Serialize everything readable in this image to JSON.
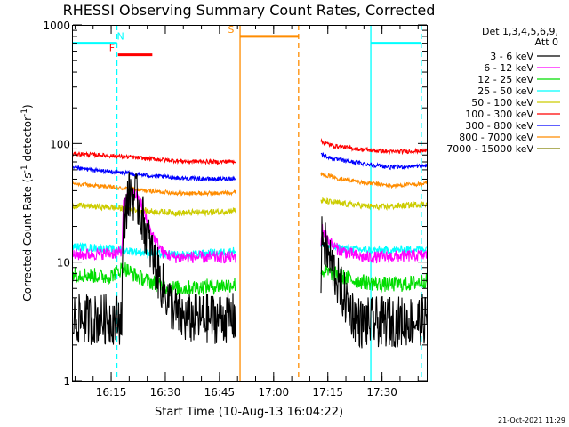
{
  "chart_data": {
    "type": "line",
    "title": "RHESSI Observing Summary Count Rates, Corrected",
    "xlabel": "Start Time (10-Aug-13 16:04:22)",
    "ylabel_main": "Corrected Count Rate (s",
    "ylabel_sup1": "-1",
    "ylabel_mid": " detector",
    "ylabel_sup2": "-1",
    "ylabel_end": ")",
    "yscale": "log",
    "ylim": [
      1,
      1000
    ],
    "xlim_minutes": [
      0,
      98
    ],
    "x_ticks": [
      {
        "label": "16:15",
        "minute": 10.6
      },
      {
        "label": "16:30",
        "minute": 25.6
      },
      {
        "label": "16:45",
        "minute": 40.6
      },
      {
        "label": "17:00",
        "minute": 55.6
      },
      {
        "label": "17:15",
        "minute": 70.6
      },
      {
        "label": "17:30",
        "minute": 85.6
      }
    ],
    "y_ticks": [
      {
        "label": "1",
        "value": 1
      },
      {
        "label": "10",
        "value": 10
      },
      {
        "label": "100",
        "value": 100
      },
      {
        "label": "1000",
        "value": 1000
      }
    ],
    "legend": {
      "placement": "right",
      "header_line1": "Det 1,3,4,5,6,9,",
      "header_line2": "Att 0",
      "entries": [
        {
          "label": "3 - 6 keV",
          "color": "#000000"
        },
        {
          "label": "6 - 12 keV",
          "color": "#ff00ff"
        },
        {
          "label": "12 - 25 keV",
          "color": "#00dd00"
        },
        {
          "label": "25 - 50 keV",
          "color": "#00ffff"
        },
        {
          "label": "50 - 100 keV",
          "color": "#cccc00"
        },
        {
          "label": "100 - 300 keV",
          "color": "#ff0000"
        },
        {
          "label": "300 - 800 keV",
          "color": "#0000ff"
        },
        {
          "label": "800 - 7000 keV",
          "color": "#ff8c00"
        },
        {
          "label": "7000 - 15000 keV",
          "color": "#808000"
        }
      ]
    },
    "segments": [
      {
        "name": "before-gap",
        "x_start": 0,
        "x_end": 45.2
      },
      {
        "name": "after-gap",
        "x_start": 68.5,
        "x_end": 98
      }
    ],
    "series": [
      {
        "name": "3 - 6 keV",
        "color": "#000000",
        "noise": 0.5,
        "points": [
          [
            0,
            3.3
          ],
          [
            13.5,
            3.3
          ],
          [
            14,
            20
          ],
          [
            15,
            33
          ],
          [
            16,
            38
          ],
          [
            17.5,
            35
          ],
          [
            19,
            25
          ],
          [
            21,
            15
          ],
          [
            23,
            9
          ],
          [
            25,
            6
          ],
          [
            27,
            4.5
          ],
          [
            29,
            3.6
          ],
          [
            31,
            3.3
          ],
          [
            45.2,
            3.4
          ],
          [
            68.5,
            3.5
          ],
          [
            69,
            18
          ],
          [
            70,
            13
          ],
          [
            72,
            9
          ],
          [
            74,
            6
          ],
          [
            76,
            4.5
          ],
          [
            78,
            3.5
          ],
          [
            80,
            3.0
          ],
          [
            82,
            3.1
          ],
          [
            95,
            3.2
          ],
          [
            98,
            3.3
          ]
        ]
      },
      {
        "name": "6 - 12 keV",
        "color": "#ff00ff",
        "noise": 0.12,
        "points": [
          [
            0,
            11.5
          ],
          [
            13.5,
            12
          ],
          [
            14,
            30
          ],
          [
            16,
            38
          ],
          [
            17.5,
            37
          ],
          [
            19,
            30
          ],
          [
            21,
            20
          ],
          [
            23,
            15
          ],
          [
            25,
            12
          ],
          [
            28,
            11
          ],
          [
            45.2,
            11
          ],
          [
            68.5,
            11.5
          ],
          [
            69,
            19
          ],
          [
            71,
            15
          ],
          [
            73,
            13
          ],
          [
            76,
            12
          ],
          [
            80,
            11
          ],
          [
            85,
            11
          ],
          [
            98,
            11.5
          ]
        ]
      },
      {
        "name": "12 - 25 keV",
        "color": "#00dd00",
        "noise": 0.15,
        "points": [
          [
            0,
            8
          ],
          [
            10,
            7.5
          ],
          [
            14,
            9
          ],
          [
            18,
            7.5
          ],
          [
            25,
            6.2
          ],
          [
            30,
            6
          ],
          [
            45.2,
            6.5
          ],
          [
            68.5,
            8.5
          ],
          [
            72,
            8
          ],
          [
            78,
            7
          ],
          [
            85,
            6.5
          ],
          [
            92,
            6.5
          ],
          [
            98,
            7
          ]
        ]
      },
      {
        "name": "25 - 50 keV",
        "color": "#00ffff",
        "noise": 0.08,
        "points": [
          [
            0,
            13.5
          ],
          [
            10,
            13
          ],
          [
            20,
            12
          ],
          [
            30,
            11.5
          ],
          [
            40,
            12
          ],
          [
            45.2,
            12.5
          ],
          [
            68.5,
            14
          ],
          [
            75,
            13
          ],
          [
            85,
            12.5
          ],
          [
            98,
            13
          ]
        ]
      },
      {
        "name": "50 - 100 keV",
        "color": "#cccc00",
        "noise": 0.06,
        "points": [
          [
            0,
            30
          ],
          [
            10,
            29
          ],
          [
            20,
            27
          ],
          [
            30,
            26
          ],
          [
            40,
            26.5
          ],
          [
            45.2,
            27.5
          ],
          [
            68.5,
            33
          ],
          [
            75,
            31
          ],
          [
            85,
            29
          ],
          [
            98,
            31
          ]
        ]
      },
      {
        "name": "100 - 300 keV",
        "color": "#ff0000",
        "noise": 0.04,
        "points": [
          [
            0,
            82
          ],
          [
            10,
            79
          ],
          [
            20,
            75
          ],
          [
            30,
            71
          ],
          [
            40,
            70
          ],
          [
            45.2,
            71
          ],
          [
            68.5,
            104
          ],
          [
            72,
            96
          ],
          [
            80,
            89
          ],
          [
            88,
            85
          ],
          [
            98,
            87
          ]
        ]
      },
      {
        "name": "300 - 800 keV",
        "color": "#0000ff",
        "noise": 0.04,
        "points": [
          [
            0,
            62
          ],
          [
            10,
            58
          ],
          [
            20,
            54
          ],
          [
            30,
            51
          ],
          [
            40,
            50
          ],
          [
            45.2,
            51
          ],
          [
            68.5,
            82
          ],
          [
            72,
            74
          ],
          [
            80,
            68
          ],
          [
            88,
            63
          ],
          [
            98,
            65
          ]
        ]
      },
      {
        "name": "800 - 7000 keV",
        "color": "#ff8c00",
        "noise": 0.04,
        "points": [
          [
            0,
            46
          ],
          [
            10,
            43
          ],
          [
            20,
            40
          ],
          [
            30,
            38
          ],
          [
            40,
            38
          ],
          [
            45.2,
            39
          ],
          [
            68.5,
            56
          ],
          [
            72,
            52
          ],
          [
            80,
            47
          ],
          [
            88,
            44
          ],
          [
            98,
            46
          ]
        ]
      },
      {
        "name": "7000 - 15000 keV",
        "color": "#808000",
        "noise": 0.0,
        "points": []
      }
    ],
    "annotations": [
      {
        "label": "N",
        "color": "#00ffff",
        "x_start": 0,
        "x_end": 12.2,
        "y": 700,
        "label_x": 13.2
      },
      {
        "label": "F",
        "color": "#ff0000",
        "x_start": 12.5,
        "x_end": 22,
        "y": 560,
        "label_x": 10.8
      },
      {
        "label": "S",
        "color": "#ff8c00",
        "x_start": 46.3,
        "x_end": 62.5,
        "y": 800,
        "label_x": 43.8
      },
      {
        "label": "",
        "color": "#00ffff",
        "x_start": 82.5,
        "x_end": 96.5,
        "y": 700,
        "label_x": 82.5
      }
    ],
    "vlines": [
      {
        "x": 12.2,
        "color": "#00ffff",
        "style": "dashed"
      },
      {
        "x": 46.3,
        "color": "#ff8c00",
        "style": "solid"
      },
      {
        "x": 62.5,
        "color": "#ff8c00",
        "style": "dashed"
      },
      {
        "x": 82.5,
        "color": "#00ffff",
        "style": "solid"
      },
      {
        "x": 96.5,
        "color": "#00ffff",
        "style": "dashed"
      }
    ],
    "footer_timestamp": "21-Oct-2021 11:29"
  }
}
